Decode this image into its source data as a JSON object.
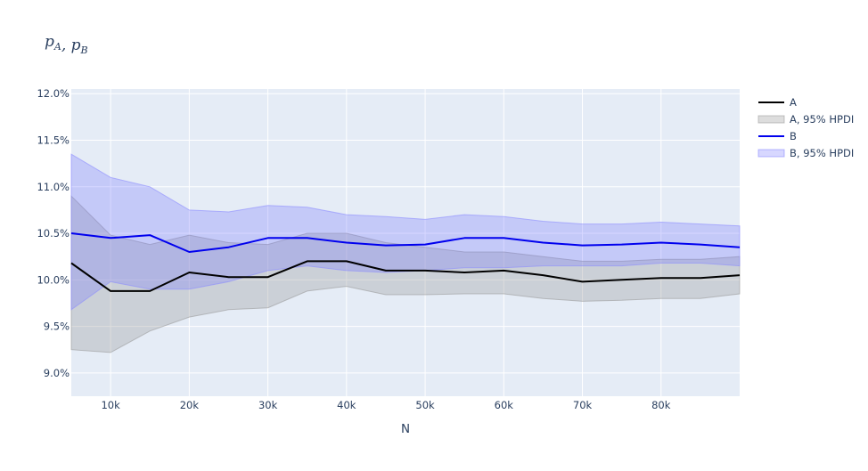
{
  "chart_data": {
    "type": "line",
    "title": "p_A , p_B",
    "title_parts": [
      {
        "kind": "var",
        "base": "p",
        "sub": "A"
      },
      {
        "kind": "sep",
        "text": ", "
      },
      {
        "kind": "var",
        "base": "p",
        "sub": "B"
      }
    ],
    "xlabel": "N",
    "ylabel": "",
    "xlim": [
      5000,
      90000
    ],
    "ylim": [
      0.0875,
      0.1205
    ],
    "x_ticks": [
      {
        "value": 10000,
        "label": "10k"
      },
      {
        "value": 20000,
        "label": "20k"
      },
      {
        "value": 30000,
        "label": "30k"
      },
      {
        "value": 40000,
        "label": "40k"
      },
      {
        "value": 50000,
        "label": "50k"
      },
      {
        "value": 60000,
        "label": "60k"
      },
      {
        "value": 70000,
        "label": "70k"
      },
      {
        "value": 80000,
        "label": "80k"
      }
    ],
    "y_ticks": [
      {
        "value": 0.09,
        "label": "9.0%"
      },
      {
        "value": 0.095,
        "label": "9.5%"
      },
      {
        "value": 0.1,
        "label": "10.0%"
      },
      {
        "value": 0.105,
        "label": "10.5%"
      },
      {
        "value": 0.11,
        "label": "11.0%"
      },
      {
        "value": 0.115,
        "label": "11.5%"
      },
      {
        "value": 0.12,
        "label": "12.0%"
      }
    ],
    "grid": true,
    "legend_position": "right",
    "x": [
      5000,
      10000,
      15000,
      20000,
      25000,
      30000,
      35000,
      40000,
      45000,
      50000,
      55000,
      60000,
      65000,
      70000,
      75000,
      80000,
      85000,
      90000
    ],
    "series": [
      {
        "name": "A",
        "kind": "line",
        "color": "#000000",
        "values": [
          0.1018,
          0.0988,
          0.0988,
          0.1008,
          0.1003,
          0.1003,
          0.102,
          0.102,
          0.101,
          0.101,
          0.1008,
          0.101,
          0.1005,
          0.0998,
          0.1,
          0.1002,
          0.1002,
          0.1005
        ]
      },
      {
        "name": "A, 95% HPDI",
        "kind": "band",
        "fill": "rgba(150,150,150,0.32)",
        "stroke": "rgba(150,150,150,0.55)",
        "lower": [
          0.0925,
          0.0922,
          0.0945,
          0.096,
          0.0968,
          0.097,
          0.0988,
          0.0993,
          0.0984,
          0.0984,
          0.0985,
          0.0985,
          0.098,
          0.0977,
          0.0978,
          0.098,
          0.098,
          0.0985
        ],
        "upper": [
          0.109,
          0.1048,
          0.1038,
          0.1048,
          0.104,
          0.1038,
          0.105,
          0.105,
          0.104,
          0.1035,
          0.103,
          0.103,
          0.1025,
          0.102,
          0.102,
          0.1022,
          0.1022,
          0.1025
        ]
      },
      {
        "name": "B",
        "kind": "line",
        "color": "#0000ee",
        "values": [
          0.105,
          0.1045,
          0.1048,
          0.103,
          0.1035,
          0.1045,
          0.1045,
          0.104,
          0.1037,
          0.1038,
          0.1045,
          0.1045,
          0.104,
          0.1037,
          0.1038,
          0.104,
          0.1038,
          0.1035
        ]
      },
      {
        "name": "B, 95% HPDI",
        "kind": "band",
        "fill": "rgba(110,110,255,0.28)",
        "stroke": "rgba(140,140,255,0.6)",
        "lower": [
          0.0968,
          0.0998,
          0.099,
          0.099,
          0.0998,
          0.101,
          0.1015,
          0.101,
          0.1008,
          0.101,
          0.1013,
          0.1013,
          0.1015,
          0.1015,
          0.1015,
          0.1018,
          0.1018,
          0.1015
        ],
        "upper": [
          0.1135,
          0.111,
          0.11,
          0.1075,
          0.1073,
          0.108,
          0.1078,
          0.107,
          0.1068,
          0.1065,
          0.107,
          0.1068,
          0.1063,
          0.106,
          0.106,
          0.1062,
          0.106,
          0.1058
        ]
      }
    ]
  }
}
